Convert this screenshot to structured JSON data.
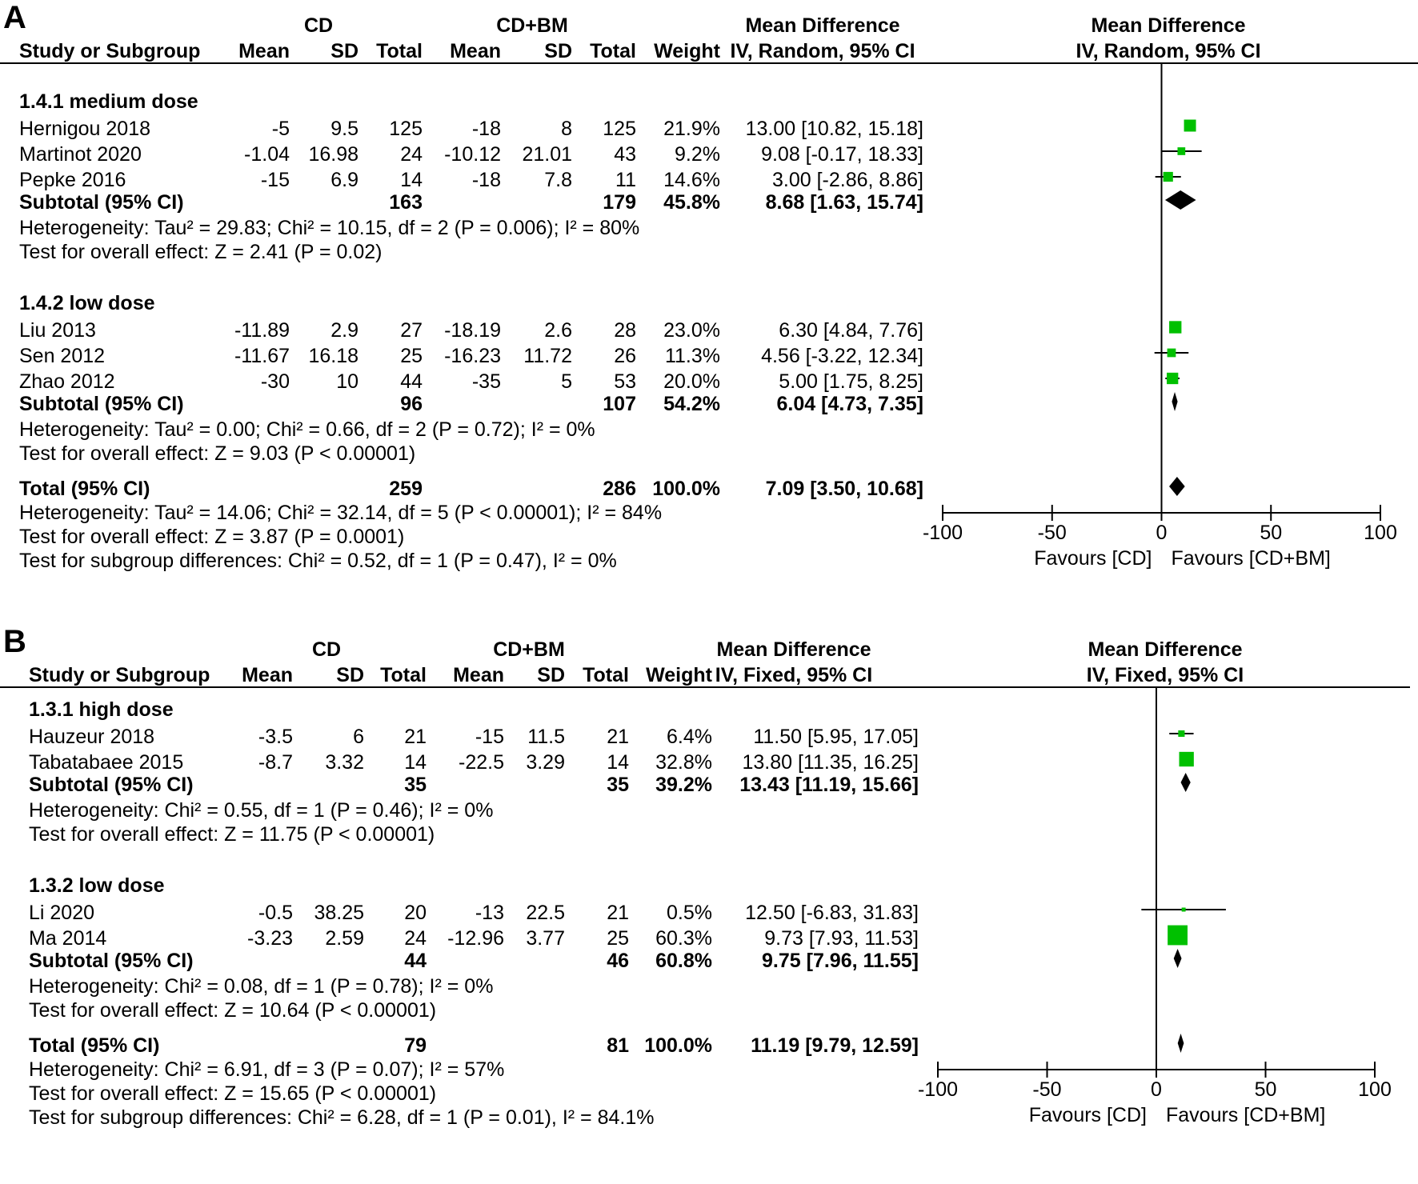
{
  "chart_data": [
    {
      "type": "forest",
      "panel_label": "A",
      "header": {
        "group1": "CD",
        "group2": "CD+BM",
        "effect_title": "Mean Difference",
        "effect_method": "IV, Random, 95% CI",
        "plot_title": "Mean Difference",
        "plot_method": "IV, Random, 95% CI",
        "col_study": "Study or Subgroup",
        "col_mean1": "Mean",
        "col_sd1": "SD",
        "col_total1": "Total",
        "col_mean2": "Mean",
        "col_sd2": "SD",
        "col_total2": "Total",
        "col_weight": "Weight"
      },
      "subgroups": [
        {
          "title": "1.4.1 medium dose",
          "studies": [
            {
              "name": "Hernigou 2018",
              "mean1": "-5",
              "sd1": "9.5",
              "total1": "125",
              "mean2": "-18",
              "sd2": "8",
              "total2": "125",
              "weight": "21.9%",
              "ci_text": "13.00 [10.82, 15.18]",
              "md": 13.0,
              "lo": 10.82,
              "hi": 15.18,
              "w": 21.9
            },
            {
              "name": "Martinot 2020",
              "mean1": "-1.04",
              "sd1": "16.98",
              "total1": "24",
              "mean2": "-10.12",
              "sd2": "21.01",
              "total2": "43",
              "weight": "9.2%",
              "ci_text": "9.08 [-0.17, 18.33]",
              "md": 9.08,
              "lo": -0.17,
              "hi": 18.33,
              "w": 9.2
            },
            {
              "name": "Pepke 2016",
              "mean1": "-15",
              "sd1": "6.9",
              "total1": "14",
              "mean2": "-18",
              "sd2": "7.8",
              "total2": "11",
              "weight": "14.6%",
              "ci_text": "3.00 [-2.86, 8.86]",
              "md": 3.0,
              "lo": -2.86,
              "hi": 8.86,
              "w": 14.6
            }
          ],
          "subtotal": {
            "label": "Subtotal (95% CI)",
            "total1": "163",
            "total2": "179",
            "weight": "45.8%",
            "ci_text": "8.68 [1.63, 15.74]",
            "md": 8.68,
            "lo": 1.63,
            "hi": 15.74
          },
          "heterogeneity": "Heterogeneity: Tau² = 29.83; Chi² = 10.15, df = 2 (P = 0.006); I² = 80%",
          "overall_effect": "Test for overall effect: Z = 2.41 (P = 0.02)"
        },
        {
          "title": "1.4.2 low dose",
          "studies": [
            {
              "name": "Liu 2013",
              "mean1": "-11.89",
              "sd1": "2.9",
              "total1": "27",
              "mean2": "-18.19",
              "sd2": "2.6",
              "total2": "28",
              "weight": "23.0%",
              "ci_text": "6.30 [4.84, 7.76]",
              "md": 6.3,
              "lo": 4.84,
              "hi": 7.76,
              "w": 23.0
            },
            {
              "name": "Sen 2012",
              "mean1": "-11.67",
              "sd1": "16.18",
              "total1": "25",
              "mean2": "-16.23",
              "sd2": "11.72",
              "total2": "26",
              "weight": "11.3%",
              "ci_text": "4.56 [-3.22, 12.34]",
              "md": 4.56,
              "lo": -3.22,
              "hi": 12.34,
              "w": 11.3
            },
            {
              "name": "Zhao 2012",
              "mean1": "-30",
              "sd1": "10",
              "total1": "44",
              "mean2": "-35",
              "sd2": "5",
              "total2": "53",
              "weight": "20.0%",
              "ci_text": "5.00 [1.75, 8.25]",
              "md": 5.0,
              "lo": 1.75,
              "hi": 8.25,
              "w": 20.0
            }
          ],
          "subtotal": {
            "label": "Subtotal (95% CI)",
            "total1": "96",
            "total2": "107",
            "weight": "54.2%",
            "ci_text": "6.04 [4.73, 7.35]",
            "md": 6.04,
            "lo": 4.73,
            "hi": 7.35
          },
          "heterogeneity": "Heterogeneity: Tau² = 0.00; Chi² = 0.66, df = 2 (P = 0.72); I² = 0%",
          "overall_effect": "Test for overall effect: Z = 9.03 (P < 0.00001)"
        }
      ],
      "total": {
        "label": "Total (95% CI)",
        "total1": "259",
        "total2": "286",
        "weight": "100.0%",
        "ci_text": "7.09 [3.50, 10.68]",
        "md": 7.09,
        "lo": 3.5,
        "hi": 10.68
      },
      "footer": {
        "heterogeneity": "Heterogeneity: Tau² = 14.06; Chi² = 32.14, df = 5 (P < 0.00001); I² = 84%",
        "overall_effect": "Test for overall effect: Z = 3.87 (P = 0.0001)",
        "subgroup_diff": "Test for subgroup differences: Chi² = 0.52, df = 1 (P = 0.47), I² = 0%"
      },
      "axis": {
        "xlim": [
          -100,
          100
        ],
        "ticks": [
          "-100",
          "-50",
          "0",
          "50",
          "100"
        ],
        "favours_left": "Favours [CD]",
        "favours_right": "Favours [CD+BM]"
      },
      "colors": {
        "study_marker": "#00c000",
        "diamond": "#000000"
      }
    },
    {
      "type": "forest",
      "panel_label": "B",
      "header": {
        "group1": "CD",
        "group2": "CD+BM",
        "effect_title": "Mean Difference",
        "effect_method": "IV, Fixed, 95% CI",
        "plot_title": "Mean Difference",
        "plot_method": "IV, Fixed, 95% CI",
        "col_study": "Study or Subgroup",
        "col_mean1": "Mean",
        "col_sd1": "SD",
        "col_total1": "Total",
        "col_mean2": "Mean",
        "col_sd2": "SD",
        "col_total2": "Total",
        "col_weight": "Weight"
      },
      "subgroups": [
        {
          "title": "1.3.1 high dose",
          "studies": [
            {
              "name": "Hauzeur 2018",
              "mean1": "-3.5",
              "sd1": "6",
              "total1": "21",
              "mean2": "-15",
              "sd2": "11.5",
              "total2": "21",
              "weight": "6.4%",
              "ci_text": "11.50 [5.95, 17.05]",
              "md": 11.5,
              "lo": 5.95,
              "hi": 17.05,
              "w": 6.4
            },
            {
              "name": "Tabatabaee 2015",
              "mean1": "-8.7",
              "sd1": "3.32",
              "total1": "14",
              "mean2": "-22.5",
              "sd2": "3.29",
              "total2": "14",
              "weight": "32.8%",
              "ci_text": "13.80 [11.35, 16.25]",
              "md": 13.8,
              "lo": 11.35,
              "hi": 16.25,
              "w": 32.8
            }
          ],
          "subtotal": {
            "label": "Subtotal (95% CI)",
            "total1": "35",
            "total2": "35",
            "weight": "39.2%",
            "ci_text": "13.43 [11.19, 15.66]",
            "md": 13.43,
            "lo": 11.19,
            "hi": 15.66
          },
          "heterogeneity": "Heterogeneity: Chi² = 0.55, df = 1 (P = 0.46); I² = 0%",
          "overall_effect": "Test for overall effect: Z = 11.75 (P < 0.00001)"
        },
        {
          "title": "1.3.2 low dose",
          "studies": [
            {
              "name": "Li 2020",
              "mean1": "-0.5",
              "sd1": "38.25",
              "total1": "20",
              "mean2": "-13",
              "sd2": "22.5",
              "total2": "21",
              "weight": "0.5%",
              "ci_text": "12.50 [-6.83, 31.83]",
              "md": 12.5,
              "lo": -6.83,
              "hi": 31.83,
              "w": 0.5
            },
            {
              "name": "Ma 2014",
              "mean1": "-3.23",
              "sd1": "2.59",
              "total1": "24",
              "mean2": "-12.96",
              "sd2": "3.77",
              "total2": "25",
              "weight": "60.3%",
              "ci_text": "9.73 [7.93, 11.53]",
              "md": 9.73,
              "lo": 7.93,
              "hi": 11.53,
              "w": 60.3
            }
          ],
          "subtotal": {
            "label": "Subtotal (95% CI)",
            "total1": "44",
            "total2": "46",
            "weight": "60.8%",
            "ci_text": "9.75 [7.96, 11.55]",
            "md": 9.75,
            "lo": 7.96,
            "hi": 11.55
          },
          "heterogeneity": "Heterogeneity: Chi² = 0.08, df = 1 (P = 0.78); I² = 0%",
          "overall_effect": "Test for overall effect: Z = 10.64 (P < 0.00001)"
        }
      ],
      "total": {
        "label": "Total (95% CI)",
        "total1": "79",
        "total2": "81",
        "weight": "100.0%",
        "ci_text": "11.19 [9.79, 12.59]",
        "md": 11.19,
        "lo": 9.79,
        "hi": 12.59
      },
      "footer": {
        "heterogeneity": "Heterogeneity: Chi² = 6.91, df = 3 (P = 0.07); I² = 57%",
        "overall_effect": "Test for overall effect: Z = 15.65 (P < 0.00001)",
        "subgroup_diff": "Test for subgroup differences: Chi² = 6.28, df = 1 (P = 0.01), I² = 84.1%"
      },
      "axis": {
        "xlim": [
          -100,
          100
        ],
        "ticks": [
          "-100",
          "-50",
          "0",
          "50",
          "100"
        ],
        "favours_left": "Favours [CD]",
        "favours_right": "Favours [CD+BM]"
      },
      "colors": {
        "study_marker": "#00c000",
        "diamond": "#000000"
      }
    }
  ]
}
